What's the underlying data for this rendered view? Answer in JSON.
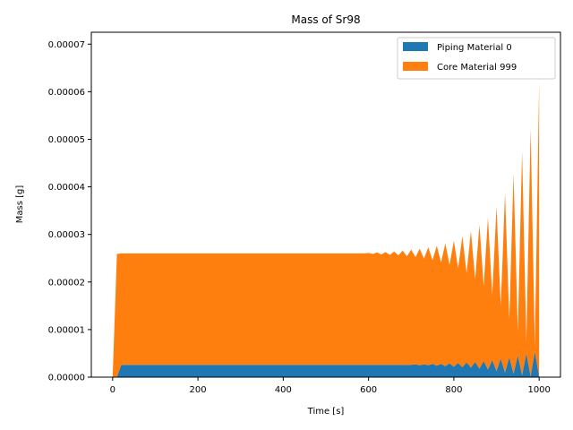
{
  "chart_data": {
    "type": "area",
    "stacked": true,
    "title": "Mass of Sr98",
    "xlabel": "Time [s]",
    "ylabel": "Mass [g]",
    "xlim": [
      -50,
      1050
    ],
    "ylim": [
      0,
      7.25e-05
    ],
    "xticks": [
      0,
      200,
      400,
      600,
      800,
      1000
    ],
    "xtick_labels": [
      "0",
      "200",
      "400",
      "600",
      "800",
      "1000"
    ],
    "yticks": [
      0,
      1e-05,
      2e-05,
      3e-05,
      4e-05,
      5e-05,
      6e-05,
      7e-05
    ],
    "ytick_labels": [
      "0.00000",
      "0.00001",
      "0.00002",
      "0.00003",
      "0.00004",
      "0.00005",
      "0.00006",
      "0.00007"
    ],
    "grid": false,
    "legend_position": "top-right",
    "x": [
      0,
      10,
      20,
      30,
      40,
      50,
      60,
      70,
      80,
      90,
      100,
      110,
      120,
      130,
      140,
      150,
      160,
      170,
      180,
      190,
      200,
      210,
      220,
      230,
      240,
      250,
      260,
      270,
      280,
      290,
      300,
      310,
      320,
      330,
      340,
      350,
      360,
      370,
      380,
      390,
      400,
      410,
      420,
      430,
      440,
      450,
      460,
      470,
      480,
      490,
      500,
      510,
      520,
      530,
      540,
      550,
      560,
      570,
      580,
      590,
      600,
      610,
      620,
      630,
      640,
      650,
      660,
      670,
      680,
      690,
      700,
      710,
      720,
      730,
      740,
      750,
      760,
      770,
      780,
      790,
      800,
      810,
      820,
      830,
      840,
      850,
      860,
      870,
      880,
      890,
      900,
      910,
      920,
      930,
      940,
      950,
      960,
      970,
      980,
      990,
      1000
    ],
    "series": [
      {
        "name": "Piping Material 0",
        "color": "#1f77b4",
        "values": [
          0,
          0,
          2.6e-06,
          2.6e-06,
          2.6e-06,
          2.6e-06,
          2.6e-06,
          2.6e-06,
          2.6e-06,
          2.6e-06,
          2.6e-06,
          2.6e-06,
          2.6e-06,
          2.6e-06,
          2.6e-06,
          2.6e-06,
          2.6e-06,
          2.6e-06,
          2.6e-06,
          2.6e-06,
          2.6e-06,
          2.6e-06,
          2.6e-06,
          2.6e-06,
          2.6e-06,
          2.6e-06,
          2.6e-06,
          2.6e-06,
          2.6e-06,
          2.6e-06,
          2.6e-06,
          2.6e-06,
          2.6e-06,
          2.6e-06,
          2.6e-06,
          2.6e-06,
          2.6e-06,
          2.6e-06,
          2.6e-06,
          2.6e-06,
          2.6e-06,
          2.6e-06,
          2.6e-06,
          2.6e-06,
          2.6e-06,
          2.6e-06,
          2.6e-06,
          2.6e-06,
          2.6e-06,
          2.6e-06,
          2.6e-06,
          2.6e-06,
          2.6e-06,
          2.6e-06,
          2.6e-06,
          2.6e-06,
          2.6e-06,
          2.6e-06,
          2.6e-06,
          2.6e-06,
          2.6e-06,
          2.6e-06,
          2.6e-06,
          2.6e-06,
          2.6e-06,
          2.6e-06,
          2.6e-06,
          2.6e-06,
          2.6e-06,
          2.6e-06,
          2.6e-06,
          2.7e-06,
          2.5e-06,
          2.7e-06,
          2.5e-06,
          2.8e-06,
          2.4e-06,
          2.8e-06,
          2.3e-06,
          2.9e-06,
          2.2e-06,
          3e-06,
          2.1e-06,
          3.1e-06,
          2e-06,
          3.2e-06,
          1.8e-06,
          3.4e-06,
          1.6e-06,
          3.6e-06,
          1.3e-06,
          3.9e-06,
          1e-06,
          4.2e-06,
          7e-07,
          4.6e-06,
          4e-07,
          5e-06,
          2e-07,
          5.4e-06,
          1e-07
        ]
      },
      {
        "name": "Core Material 999",
        "color": "#ff7f0e",
        "values": [
          0,
          2.59e-05,
          2.34e-05,
          2.34e-05,
          2.34e-05,
          2.34e-05,
          2.34e-05,
          2.34e-05,
          2.34e-05,
          2.34e-05,
          2.34e-05,
          2.34e-05,
          2.34e-05,
          2.34e-05,
          2.34e-05,
          2.34e-05,
          2.34e-05,
          2.34e-05,
          2.34e-05,
          2.34e-05,
          2.34e-05,
          2.34e-05,
          2.34e-05,
          2.34e-05,
          2.34e-05,
          2.34e-05,
          2.34e-05,
          2.34e-05,
          2.34e-05,
          2.34e-05,
          2.34e-05,
          2.34e-05,
          2.34e-05,
          2.34e-05,
          2.34e-05,
          2.34e-05,
          2.34e-05,
          2.34e-05,
          2.34e-05,
          2.34e-05,
          2.34e-05,
          2.34e-05,
          2.34e-05,
          2.34e-05,
          2.34e-05,
          2.34e-05,
          2.34e-05,
          2.34e-05,
          2.34e-05,
          2.34e-05,
          2.34e-05,
          2.34e-05,
          2.34e-05,
          2.34e-05,
          2.34e-05,
          2.34e-05,
          2.34e-05,
          2.34e-05,
          2.34e-05,
          2.34e-05,
          2.35e-05,
          2.33e-05,
          2.36e-05,
          2.32e-05,
          2.37e-05,
          2.31e-05,
          2.38e-05,
          2.3e-05,
          2.4e-05,
          2.28e-05,
          2.42e-05,
          2.25e-05,
          2.45e-05,
          2.22e-05,
          2.48e-05,
          2.18e-05,
          2.52e-05,
          2.13e-05,
          2.58e-05,
          2.07e-05,
          2.65e-05,
          1.99e-05,
          2.75e-05,
          1.88e-05,
          2.87e-05,
          1.74e-05,
          3.02e-05,
          1.57e-05,
          3.2e-05,
          1.36e-05,
          3.45e-05,
          1.1e-05,
          3.77e-05,
          8e-06,
          4.2e-05,
          5e-06,
          4.7e-05,
          2.5e-06,
          5.2e-05,
          1e-06,
          6.2e-05
        ]
      }
    ]
  }
}
